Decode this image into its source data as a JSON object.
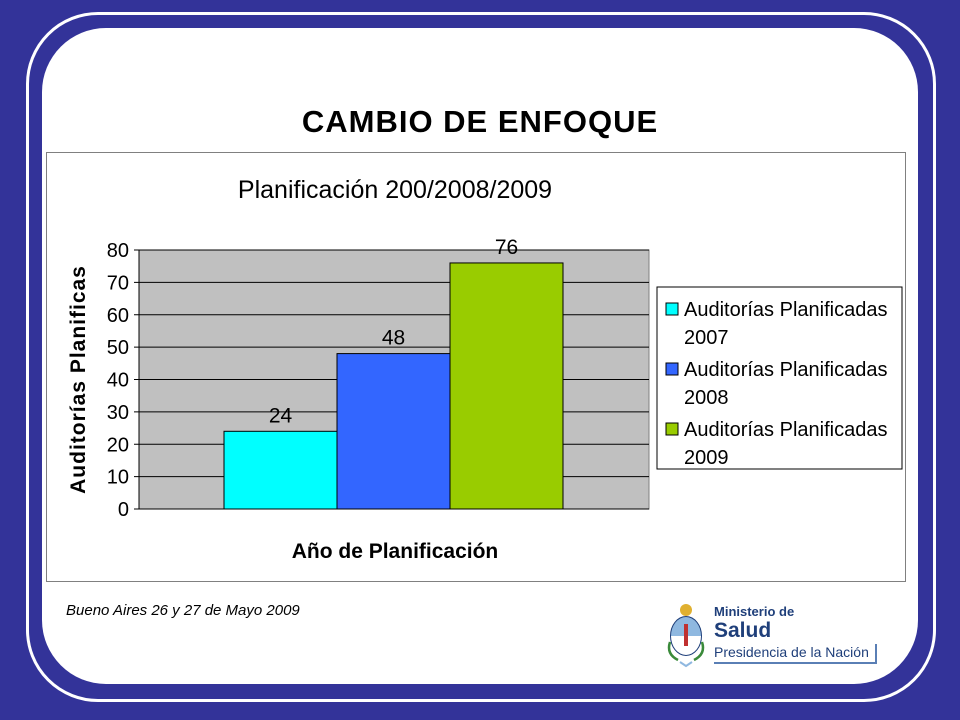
{
  "slide": {
    "title": "CAMBIO DE ENFOQUE",
    "footer": "Bueno Aires 26 y 27 de Mayo 2009"
  },
  "logo": {
    "line1": "Ministerio de",
    "line2": "Salud",
    "line3": "Presidencia de la Nación"
  },
  "chart_data": {
    "type": "bar",
    "title": "Planificación 200/2008/2009",
    "xlabel": "Año de Planificación",
    "ylabel": "Auditorías Planificas",
    "ylim": [
      0,
      80
    ],
    "yticks": [
      0,
      10,
      20,
      30,
      40,
      50,
      60,
      70,
      80
    ],
    "grid": true,
    "legend_position": "right",
    "series": [
      {
        "name": "Auditorías Planificadas 2007",
        "legend_lines": [
          "Auditorías Planificadas",
          "2007"
        ],
        "value": 24,
        "label": "24",
        "color": "#00ffff"
      },
      {
        "name": "Auditorías Planificadas 2008",
        "legend_lines": [
          "Auditorías Planificadas",
          "2008"
        ],
        "value": 48,
        "label": "48",
        "color": "#3366ff"
      },
      {
        "name": "Auditorías Planificadas 2009",
        "legend_lines": [
          "Auditorías Planificadas",
          "2009"
        ],
        "value": 76,
        "label": "76",
        "color": "#99cc00"
      }
    ],
    "plot_background": "#c0c0c0"
  }
}
